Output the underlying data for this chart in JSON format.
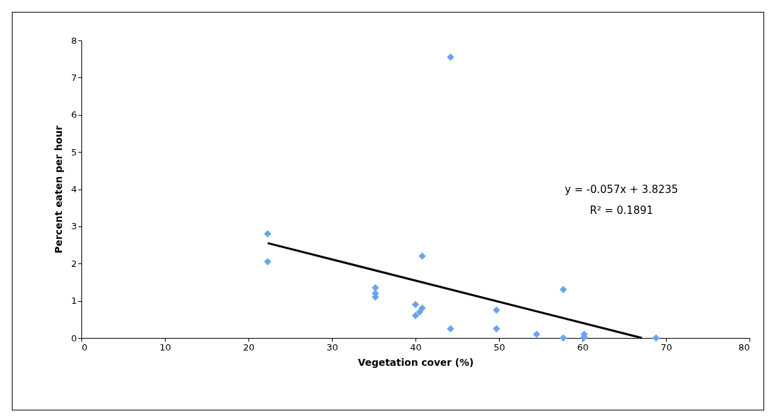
{
  "chart_data": {
    "type": "scatter",
    "xlabel": "Vegetation cover (%)",
    "ylabel": "Percent eaten per hour",
    "xlim": [
      0,
      80
    ],
    "xticks": [
      0,
      10,
      20,
      30,
      40,
      50,
      60,
      70,
      80
    ],
    "ylim": [
      0,
      8
    ],
    "yticks": [
      0,
      1,
      2,
      3,
      4,
      5,
      6,
      7,
      8
    ],
    "grid": false,
    "marker": "diamond",
    "annotations": [
      "y = -0.057x + 3.8235",
      "R² = 0.1891"
    ],
    "series": [
      {
        "color": "#6aa3f0",
        "x": [
          22.3,
          22.3,
          35.2,
          35.2,
          35.2,
          40,
          40,
          40.8,
          40.5,
          40.8,
          44.2,
          44.2,
          49.7,
          49.7,
          54.5,
          57.7,
          57.7,
          60.2,
          60.2,
          68.8
        ],
        "values": [
          2.8,
          2.05,
          1.35,
          1.2,
          1.1,
          0.9,
          0.6,
          0.8,
          0.7,
          2.2,
          7.55,
          0.25,
          0.75,
          0.25,
          0.1,
          1.3,
          0,
          0.1,
          0.02,
          0
        ]
      },
      {
        "type": "line",
        "marker": "none",
        "color": "#000000",
        "x": [
          22.3,
          67.1
        ],
        "values": [
          2.55,
          0
        ]
      }
    ]
  }
}
